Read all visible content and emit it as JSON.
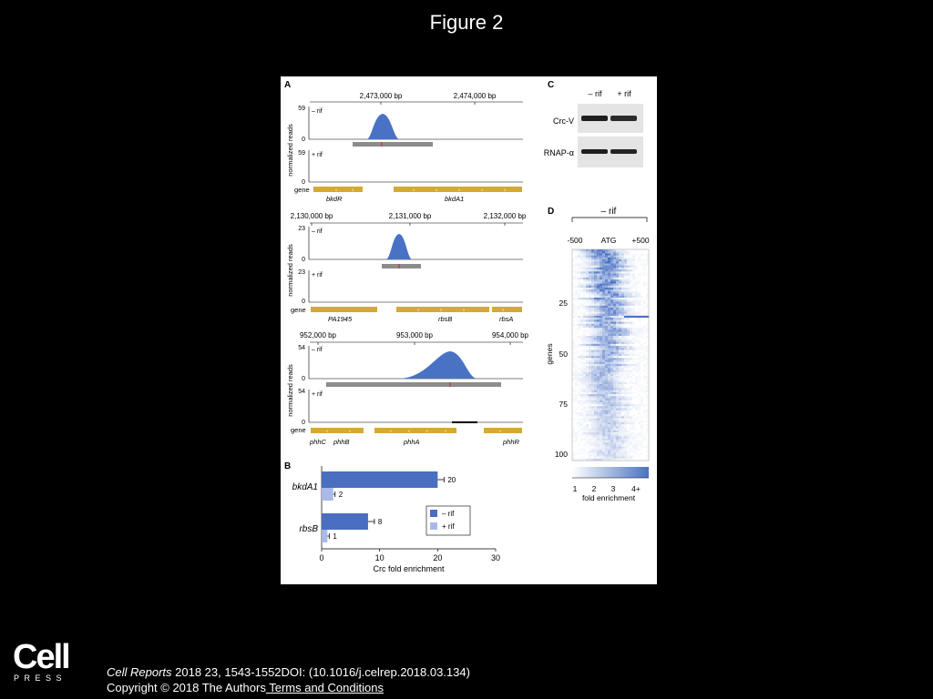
{
  "slide": {
    "title": "Figure 2"
  },
  "footer": {
    "journal": "Cell Reports",
    "citation": " 2018 23, 1543-1552DOI: (10.1016/j.celrep.2018.03.134)",
    "copyright": "Copyright © 2018 The Authors",
    "terms_link": " Terms and Conditions"
  },
  "logo": {
    "word": "Cell",
    "press": "PRESS"
  },
  "colors": {
    "peak": "#4a72c4",
    "bar_dark": "#4a6ec0",
    "bar_light": "#a9b9ea",
    "gene": "#d4a934",
    "gray_bar": "#8c8c8c",
    "background": "#000000",
    "panel": "#ffffff"
  },
  "panelA": {
    "label": "A",
    "ylabel": "normalized reads",
    "gene_row_label": "gene",
    "tracks": [
      {
        "coords": [
          "2,473,000 bp",
          "2,474,000 bp"
        ],
        "ymax": "59",
        "yzero": "0",
        "minus_label": "– rif",
        "plus_label": "+ rif",
        "genes": [
          "bkdR",
          "bkdA1"
        ]
      },
      {
        "coords": [
          "2,130,000 bp",
          "2,131,000 bp",
          "2,132,000 bp"
        ],
        "ymax": "23",
        "yzero": "0",
        "minus_label": "– rif",
        "plus_label": "+ rif",
        "genes": [
          "PA1945",
          "rbsB",
          "rbsA"
        ]
      },
      {
        "coords": [
          "952,000 bp",
          "953,000 bp",
          "954,000 bp"
        ],
        "ymax": "54",
        "yzero": "0",
        "minus_label": "– rif",
        "plus_label": "+ rif",
        "genes": [
          "phhC",
          "phhB",
          "phhA",
          "phhR"
        ]
      }
    ]
  },
  "panelC": {
    "label": "C",
    "lanes": [
      "– rif",
      "+ rif"
    ],
    "rows": [
      "Crc-V",
      "RNAP-α"
    ]
  },
  "panelD": {
    "label": "D",
    "header": "– rif",
    "x_ticks": [
      "-500",
      "ATG",
      "+500"
    ],
    "ylabel": "genes",
    "y_ticks": [
      "25",
      "50",
      "75",
      "100"
    ],
    "colorbar_ticks": [
      "1",
      "2",
      "3",
      "4+"
    ],
    "colorbar_label": "fold enrichment"
  },
  "chart_data": {
    "type": "bar",
    "title": "",
    "categories": [
      "bkdA1",
      "rbsB"
    ],
    "series": [
      {
        "name": "– rif",
        "values": [
          20,
          8
        ]
      },
      {
        "name": "+ rif",
        "values": [
          2,
          1
        ]
      }
    ],
    "value_labels": [
      [
        "20",
        "2"
      ],
      [
        "8",
        "1"
      ]
    ],
    "xlabel": "Crc fold enrichment",
    "ylabel": "",
    "xlim": [
      0,
      30
    ],
    "x_ticks": [
      "0",
      "10",
      "20",
      "30"
    ],
    "orientation": "horizontal",
    "legend": "bottom-right",
    "panel_label": "B"
  }
}
